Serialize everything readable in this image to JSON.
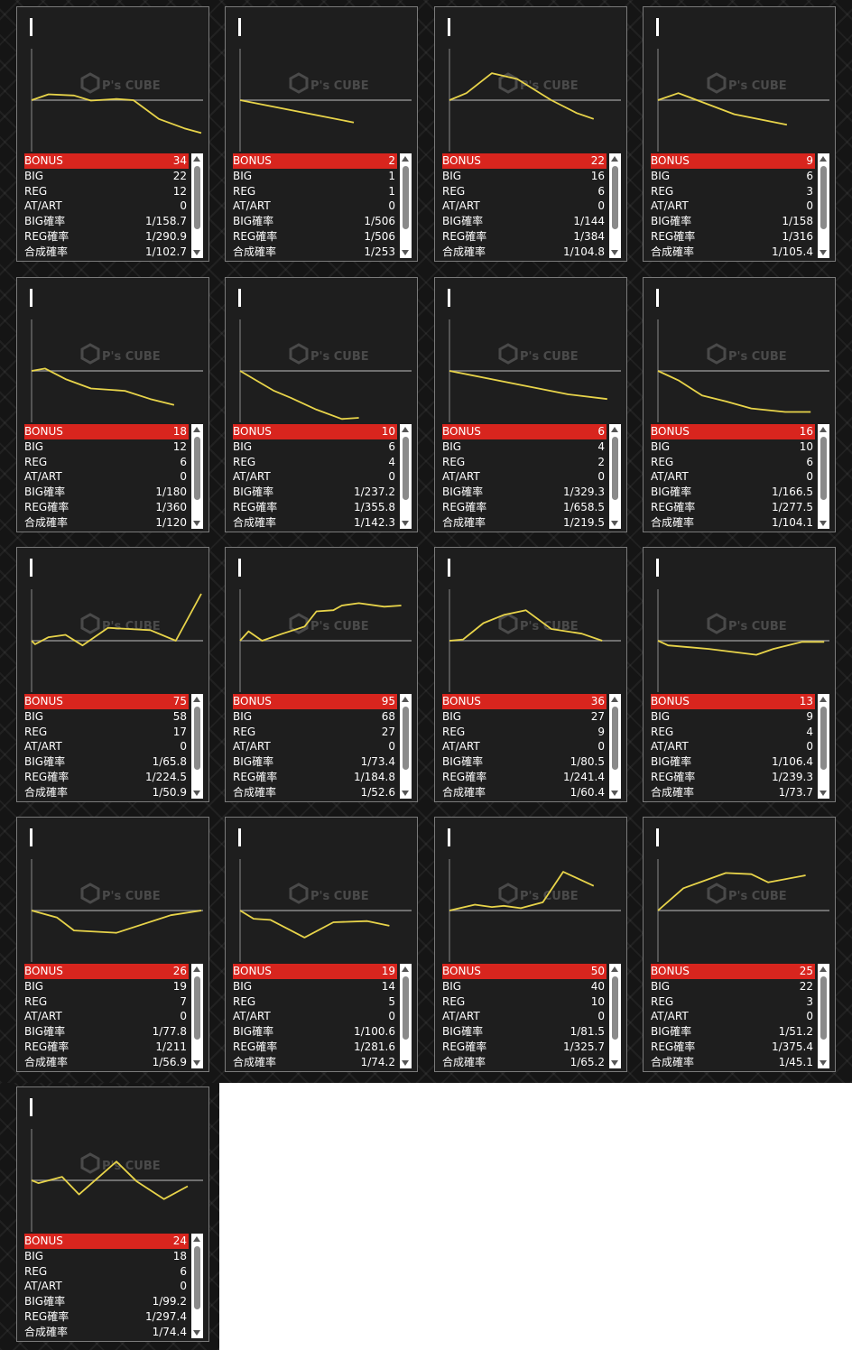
{
  "style": {
    "line_color": "#e8d44a",
    "bonus_bg": "#d8251e",
    "card_bg": "#1e1e1e",
    "baseline_color": "#8a8a8a"
  },
  "watermark": {
    "brand": "P's CUBE",
    "icon": "cube-logo-icon"
  },
  "row_labels": [
    "BONUS",
    "BIG",
    "REG",
    "AT/ART",
    "BIG確率",
    "REG確率",
    "合成確率"
  ],
  "machines": [
    {
      "id": "0938",
      "stats": [
        "34",
        "22",
        "12",
        "0",
        "1/158.7",
        "1/290.9",
        "1/102.7"
      ],
      "trend": {
        "x": [
          0,
          0.1,
          0.25,
          0.35,
          0.5,
          0.6,
          0.75,
          0.9,
          1
        ],
        "y": [
          0,
          -0.25,
          -0.2,
          0.02,
          -0.05,
          0,
          0.8,
          1.2,
          1.4
        ]
      }
    },
    {
      "id": "0939",
      "stats": [
        "2",
        "1",
        "1",
        "0",
        "1/506",
        "1/506",
        "1/253"
      ],
      "trend": {
        "x": [
          0,
          0.67
        ],
        "y": [
          0,
          0.95
        ]
      }
    },
    {
      "id": "0940",
      "stats": [
        "22",
        "16",
        "6",
        "0",
        "1/144",
        "1/384",
        "1/104.8"
      ],
      "trend": {
        "x": [
          0,
          0.1,
          0.25,
          0.4,
          0.6,
          0.75,
          0.85
        ],
        "y": [
          0,
          -0.3,
          -1.15,
          -0.9,
          0,
          0.55,
          0.8
        ]
      }
    },
    {
      "id": "0941",
      "stats": [
        "9",
        "6",
        "3",
        "0",
        "1/158",
        "1/316",
        "1/105.4"
      ],
      "trend": {
        "x": [
          0,
          0.12,
          0.45,
          0.76
        ],
        "y": [
          0,
          -0.3,
          0.6,
          1.05
        ]
      }
    },
    {
      "id": "0942",
      "stats": [
        "18",
        "12",
        "6",
        "0",
        "1/180",
        "1/360",
        "1/120"
      ],
      "trend": {
        "x": [
          0,
          0.08,
          0.2,
          0.35,
          0.55,
          0.7,
          0.84
        ],
        "y": [
          0,
          -0.1,
          0.35,
          0.75,
          0.85,
          1.2,
          1.45
        ]
      }
    },
    {
      "id": "0943",
      "stats": [
        "10",
        "6",
        "4",
        "0",
        "1/237.2",
        "1/355.8",
        "1/142.3"
      ],
      "trend": {
        "x": [
          0,
          0.2,
          0.3,
          0.45,
          0.6,
          0.7
        ],
        "y": [
          0,
          0.85,
          1.15,
          1.65,
          2.05,
          2.0
        ]
      }
    },
    {
      "id": "0944",
      "stats": [
        "6",
        "4",
        "2",
        "0",
        "1/329.3",
        "1/658.5",
        "1/219.5"
      ],
      "trend": {
        "x": [
          0,
          0.35,
          0.7,
          0.93
        ],
        "y": [
          0,
          0.5,
          1.0,
          1.2
        ]
      }
    },
    {
      "id": "0945",
      "stats": [
        "16",
        "10",
        "6",
        "0",
        "1/166.5",
        "1/277.5",
        "1/104.1"
      ],
      "trend": {
        "x": [
          0,
          0.12,
          0.26,
          0.4,
          0.55,
          0.75,
          0.9
        ],
        "y": [
          0,
          0.4,
          1.05,
          1.3,
          1.6,
          1.75,
          1.75
        ]
      }
    },
    {
      "id": "0946",
      "stats": [
        "75",
        "58",
        "17",
        "0",
        "1/65.8",
        "1/224.5",
        "1/50.9"
      ],
      "trend": {
        "x": [
          0,
          0.02,
          0.1,
          0.2,
          0.3,
          0.45,
          0.7,
          0.85,
          1.0
        ],
        "y": [
          0,
          0.15,
          -0.15,
          -0.25,
          0.2,
          -0.55,
          -0.45,
          0,
          -2.0
        ]
      }
    },
    {
      "id": "0947",
      "stats": [
        "95",
        "68",
        "27",
        "0",
        "1/73.4",
        "1/184.8",
        "1/52.6"
      ],
      "trend": {
        "x": [
          0,
          0.05,
          0.13,
          0.25,
          0.38,
          0.45,
          0.55,
          0.6,
          0.7,
          0.85,
          0.95
        ],
        "y": [
          0,
          -0.4,
          0,
          -0.3,
          -0.6,
          -1.25,
          -1.3,
          -1.5,
          -1.6,
          -1.45,
          -1.5
        ]
      }
    },
    {
      "id": "0948",
      "stats": [
        "36",
        "27",
        "9",
        "0",
        "1/80.5",
        "1/241.4",
        "1/60.4"
      ],
      "trend": {
        "x": [
          0,
          0.08,
          0.2,
          0.32,
          0.45,
          0.6,
          0.78,
          0.9
        ],
        "y": [
          0,
          -0.05,
          -0.75,
          -1.1,
          -1.3,
          -0.5,
          -0.3,
          0
        ]
      }
    },
    {
      "id": "0949",
      "stats": [
        "13",
        "9",
        "4",
        "0",
        "1/106.4",
        "1/239.3",
        "1/73.7"
      ],
      "trend": {
        "x": [
          0,
          0.06,
          0.3,
          0.58,
          0.68,
          0.85,
          0.98
        ],
        "y": [
          0,
          0.2,
          0.35,
          0.6,
          0.35,
          0.05,
          0.05
        ]
      }
    },
    {
      "id": "0950",
      "stats": [
        "26",
        "19",
        "7",
        "0",
        "1/77.8",
        "1/211",
        "1/56.9"
      ],
      "trend": {
        "x": [
          0,
          0.15,
          0.25,
          0.5,
          0.82,
          1.0
        ],
        "y": [
          0,
          0.3,
          0.85,
          0.95,
          0.2,
          0
        ]
      }
    },
    {
      "id": "0951",
      "stats": [
        "19",
        "14",
        "5",
        "0",
        "1/100.6",
        "1/281.6",
        "1/74.2"
      ],
      "trend": {
        "x": [
          0,
          0.08,
          0.18,
          0.38,
          0.55,
          0.75,
          0.88
        ],
        "y": [
          0,
          0.35,
          0.4,
          1.15,
          0.5,
          0.45,
          0.65
        ]
      }
    },
    {
      "id": "0952",
      "stats": [
        "50",
        "40",
        "10",
        "0",
        "1/81.5",
        "1/325.7",
        "1/65.2"
      ],
      "trend": {
        "x": [
          0,
          0.15,
          0.25,
          0.32,
          0.42,
          0.55,
          0.67,
          0.85
        ],
        "y": [
          0,
          -0.25,
          -0.15,
          -0.2,
          -0.1,
          -0.35,
          -1.65,
          -1.05
        ]
      }
    },
    {
      "id": "0953",
      "stats": [
        "25",
        "22",
        "3",
        "0",
        "1/51.2",
        "1/375.4",
        "1/45.1"
      ],
      "trend": {
        "x": [
          0,
          0.15,
          0.4,
          0.55,
          0.65,
          0.87
        ],
        "y": [
          0,
          -0.95,
          -1.6,
          -1.55,
          -1.2,
          -1.5
        ]
      }
    },
    {
      "id": "0954",
      "stats": [
        "24",
        "18",
        "6",
        "0",
        "1/99.2",
        "1/297.4",
        "1/74.4"
      ],
      "trend": {
        "x": [
          0,
          0.04,
          0.18,
          0.28,
          0.5,
          0.62,
          0.78,
          0.92
        ],
        "y": [
          0,
          0.12,
          -0.15,
          0.6,
          -0.8,
          0.05,
          0.8,
          0.25
        ]
      }
    }
  ]
}
